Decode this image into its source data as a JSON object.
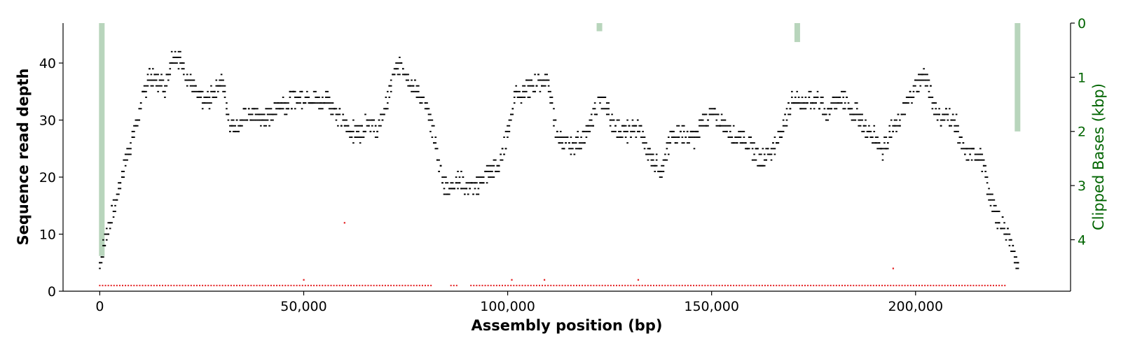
{
  "chart_data": {
    "type": "scatter",
    "title": "",
    "xlabel": "Assembly position (bp)",
    "ylabel": "Sequence read depth",
    "ylabel_right": "Clipped Bases (kbp)",
    "xlim": [
      -9000,
      238000
    ],
    "ylim": [
      0,
      47
    ],
    "ylim_right": [
      4.95,
      0
    ],
    "xticks": [
      0,
      50000,
      100000,
      150000,
      200000
    ],
    "xtick_labels": [
      "0",
      "50,000",
      "100,000",
      "150,000",
      "200,000"
    ],
    "yticks": [
      0,
      10,
      20,
      30,
      40
    ],
    "ytick_labels": [
      "0",
      "10",
      "20",
      "30",
      "40"
    ],
    "yticks_right": [
      0,
      1,
      2,
      3,
      4
    ],
    "ytick_labels_right": [
      "0",
      "1",
      "2",
      "3",
      "4"
    ],
    "grid": false,
    "colors": {
      "depth": "#000000",
      "low_depth": "#e31a1c",
      "clipped": "#b8d5bc",
      "right_axis": "#006400"
    },
    "series": [
      {
        "key": "depth",
        "x": [
          0,
          2000,
          4000,
          6000,
          8000,
          10000,
          12000,
          14000,
          16000,
          18000,
          20000,
          22000,
          24000,
          26000,
          28000,
          30000,
          32000,
          34000,
          36000,
          38000,
          40000,
          42000,
          44000,
          46000,
          48000,
          50000,
          52000,
          54000,
          56000,
          58000,
          60000,
          62000,
          64000,
          66000,
          68000,
          70000,
          72000,
          74000,
          76000,
          78000,
          80000,
          82000,
          84000,
          86000,
          88000,
          90000,
          92000,
          94000,
          96000,
          98000,
          100000,
          102000,
          104000,
          106000,
          108000,
          110000,
          112000,
          114000,
          116000,
          118000,
          120000,
          122000,
          124000,
          126000,
          128000,
          130000,
          132000,
          134000,
          136000,
          138000,
          140000,
          142000,
          144000,
          146000,
          148000,
          150000,
          152000,
          154000,
          156000,
          158000,
          160000,
          162000,
          164000,
          166000,
          168000,
          170000,
          172000,
          174000,
          176000,
          178000,
          180000,
          182000,
          184000,
          186000,
          188000,
          190000,
          192000,
          194000,
          196000,
          198000,
          200000,
          202000,
          204000,
          206000,
          208000,
          210000,
          212000,
          214000,
          216000,
          218000,
          220000,
          222000,
          224000,
          225500
        ],
        "y": [
          5,
          11,
          16,
          22,
          27,
          32,
          38,
          37,
          36,
          42,
          40,
          37,
          34,
          33,
          35,
          37,
          29,
          29,
          31,
          31,
          30,
          31,
          33,
          33,
          34,
          34,
          34,
          33,
          34,
          31,
          29,
          28,
          28,
          30,
          28,
          32,
          38,
          40,
          37,
          35,
          32,
          27,
          19,
          18,
          20,
          18,
          18,
          20,
          21,
          22,
          28,
          35,
          35,
          36,
          37,
          37,
          27,
          26,
          25,
          27,
          28,
          33,
          33,
          29,
          28,
          28,
          29,
          25,
          23,
          21,
          27,
          28,
          27,
          27,
          30,
          31,
          30,
          28,
          27,
          27,
          25,
          23,
          24,
          26,
          30,
          34,
          33,
          33,
          34,
          31,
          33,
          34,
          32,
          31,
          28,
          27,
          25,
          28,
          30,
          33,
          36,
          38,
          34,
          30,
          31,
          29,
          24,
          24,
          24,
          17,
          13,
          11,
          7,
          3
        ]
      },
      {
        "key": "low_depth",
        "x_start": 0,
        "x_end": 222000,
        "gaps": [
          [
            81500,
            85500
          ],
          [
            87500,
            90500
          ]
        ],
        "baseline": 1,
        "outliers": [
          {
            "x": 50000,
            "y": 2
          },
          {
            "x": 60000,
            "y": 12
          },
          {
            "x": 101000,
            "y": 2
          },
          {
            "x": 109000,
            "y": 2
          },
          {
            "x": 132000,
            "y": 2
          },
          {
            "x": 194500,
            "y": 4
          }
        ]
      },
      {
        "key": "clipped",
        "axis": "right",
        "bars": [
          {
            "x": 500,
            "value": 4.3
          },
          {
            "x": 122500,
            "value": 0.15
          },
          {
            "x": 171000,
            "value": 0.35
          },
          {
            "x": 225000,
            "value": 2.0
          }
        ]
      }
    ]
  }
}
